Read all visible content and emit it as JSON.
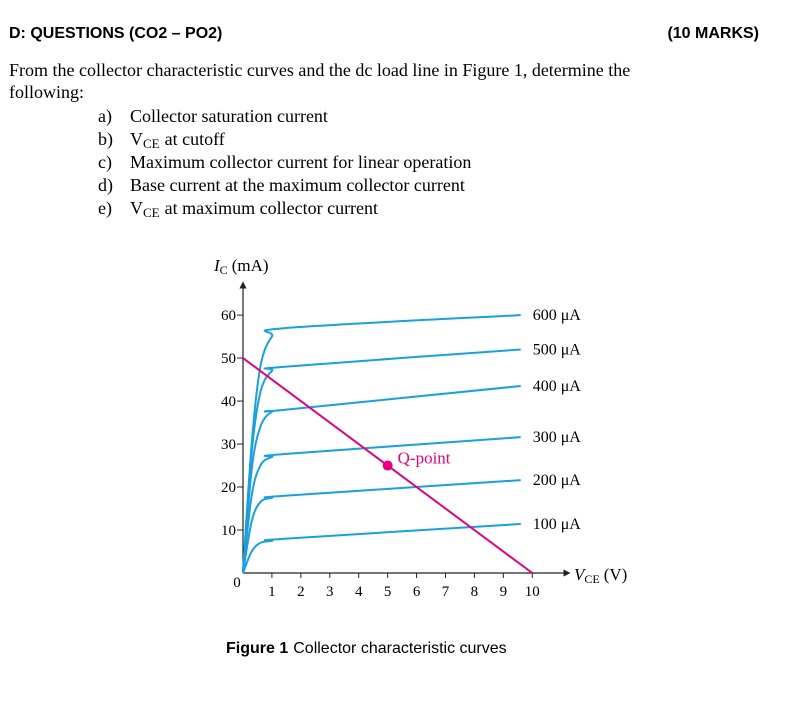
{
  "header": {
    "title": "D: QUESTIONS (CO2 – PO2)",
    "marks": "(10 MARKS)"
  },
  "intro": [
    "From the collector characteristic curves and the dc load line in Figure 1, determine the",
    "following:"
  ],
  "items": [
    {
      "label": "a)",
      "text": "Collector saturation current"
    },
    {
      "label": "b)",
      "symbol": "V",
      "subscript": "CE",
      "text": "at cutoff"
    },
    {
      "label": "c)",
      "text": "Maximum collector current for linear operation"
    },
    {
      "label": "d)",
      "text": "Base current at the maximum collector current"
    },
    {
      "label": "e)",
      "symbol": "V",
      "subscript": "CE",
      "text": "at maximum collector current"
    }
  ],
  "chart_data": {
    "type": "line",
    "y_label": {
      "symbol": "I",
      "subscript": "C",
      "unit": "(mA)"
    },
    "x_label": {
      "symbol": "V",
      "subscript": "CE",
      "unit": "(V)"
    },
    "x": [
      0,
      0.3,
      0.6,
      1,
      1.5,
      9.6
    ],
    "series": [
      {
        "name": "600 μA",
        "color": "#1a9fe0",
        "values": [
          0,
          30,
          48,
          55,
          57,
          60
        ]
      },
      {
        "name": "500 μA",
        "color": "#1a9fe0",
        "values": [
          0,
          28,
          42,
          47,
          48,
          52
        ]
      },
      {
        "name": "400 μA",
        "color": "#1a9fe0",
        "values": [
          0,
          24,
          34,
          37.5,
          38,
          43.5
        ]
      },
      {
        "name": "300 μA",
        "color": "#1a9fe0",
        "values": [
          0,
          18,
          25,
          27,
          27.7,
          31.6
        ]
      },
      {
        "name": "200 μA",
        "color": "#1a9fe0",
        "values": [
          0,
          12,
          16.5,
          17.5,
          18,
          21.6
        ]
      },
      {
        "name": "100 μA",
        "color": "#1a9fe0",
        "values": [
          0,
          5,
          7,
          7.5,
          8,
          11.4
        ]
      }
    ],
    "load_line": {
      "color": "#e5007d",
      "x": [
        0,
        10
      ],
      "values": [
        50,
        0
      ]
    },
    "q_point": {
      "label": "Q-point",
      "x": 5,
      "y": 25,
      "color": "#e5007d"
    },
    "xlim": [
      0,
      11.2
    ],
    "ylim": [
      0,
      67
    ],
    "xticks": [
      0,
      1,
      2,
      3,
      4,
      5,
      6,
      7,
      8,
      9,
      10
    ],
    "yticks": [
      10,
      20,
      30,
      40,
      50,
      60
    ]
  },
  "caption": {
    "label": "Figure 1",
    "text": "Collector characteristic curves"
  }
}
